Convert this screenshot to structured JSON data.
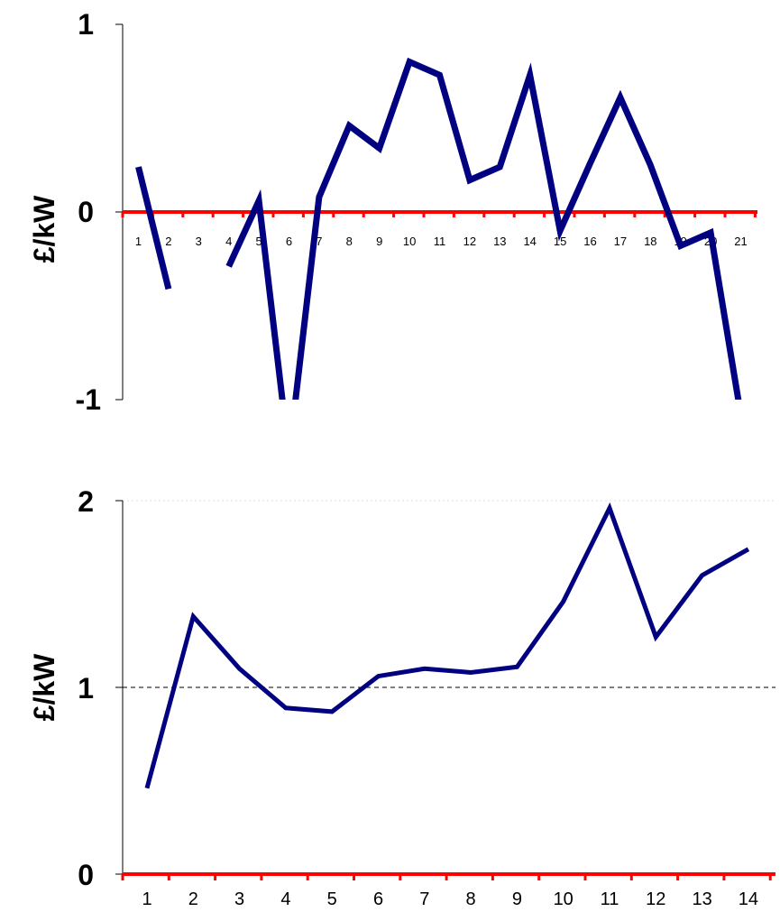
{
  "chart_data": [
    {
      "type": "line",
      "ylabel": "£/kW",
      "ylim": [
        -1,
        1
      ],
      "yticks": [
        "1",
        "0",
        "-1"
      ],
      "x_tick_labels": [
        "1",
        "2",
        "3",
        "4",
        "5",
        "6",
        "7",
        "8",
        "9",
        "10",
        "11",
        "12",
        "13",
        "14",
        "15",
        "16",
        "17",
        "18",
        "19",
        "20",
        "21"
      ],
      "grid": false,
      "series": [
        {
          "color": "#000080",
          "x": [
            1,
            2,
            3,
            4,
            5,
            6,
            7,
            8,
            9,
            10,
            11,
            12,
            13,
            14,
            15,
            16,
            17,
            18,
            19,
            20,
            21
          ],
          "values": [
            0.24,
            -0.41,
            null,
            -0.29,
            0.06,
            -1.3,
            0.08,
            0.46,
            0.34,
            0.8,
            0.73,
            0.17,
            0.24,
            0.73,
            -0.1,
            0.26,
            0.61,
            0.25,
            -0.18,
            -0.11,
            -1.08
          ]
        }
      ],
      "baseline_color": "#ff0000"
    },
    {
      "type": "line",
      "ylabel": "£/kW",
      "ylim": [
        0,
        2
      ],
      "yticks": [
        "2",
        "1",
        "0"
      ],
      "x_tick_labels": [
        "1",
        "2",
        "3",
        "4",
        "5",
        "6",
        "7",
        "8",
        "9",
        "10",
        "11",
        "12",
        "13",
        "14"
      ],
      "reference_line": 1,
      "series": [
        {
          "color": "#000080",
          "x": [
            1,
            2,
            3,
            4,
            5,
            6,
            7,
            8,
            9,
            10,
            11,
            12,
            13,
            14
          ],
          "values": [
            0.46,
            1.38,
            1.1,
            0.89,
            0.87,
            1.06,
            1.1,
            1.08,
            1.11,
            1.46,
            1.96,
            1.27,
            1.6,
            1.74
          ]
        }
      ],
      "baseline_color": "#ff0000"
    }
  ]
}
